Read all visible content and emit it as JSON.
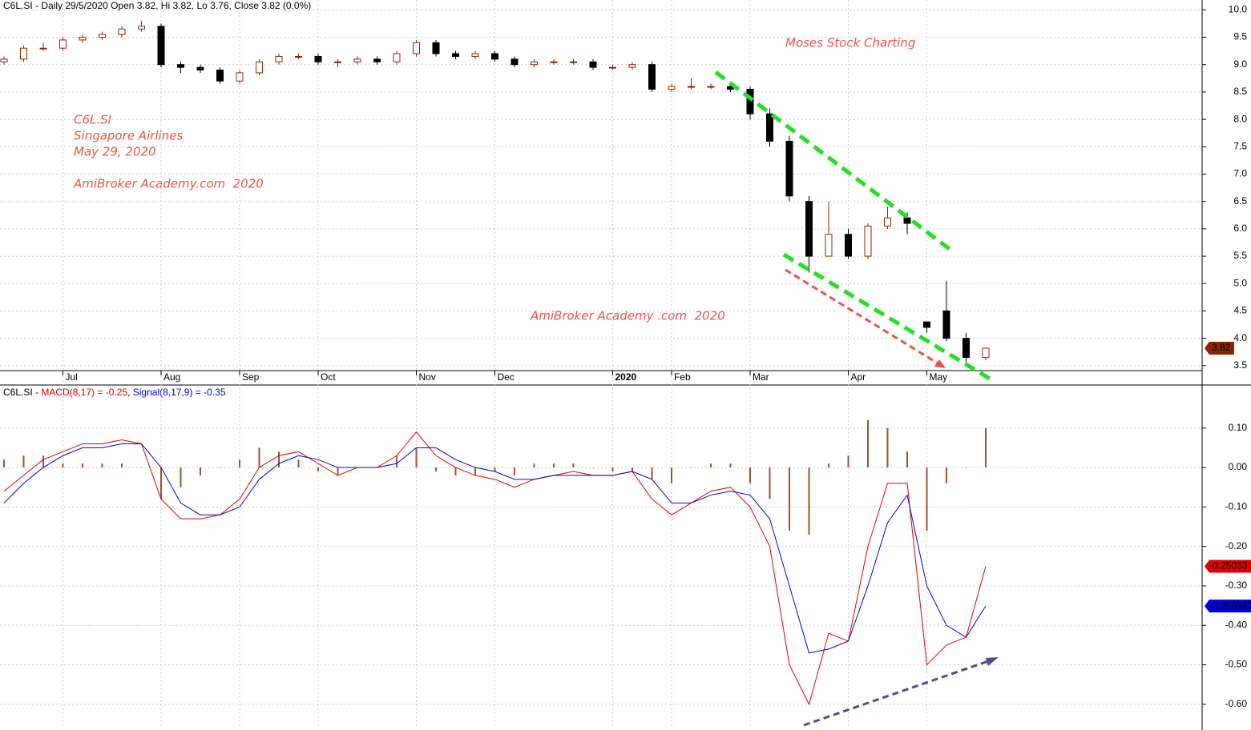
{
  "chart_data": [
    {
      "type": "candlestick",
      "title": "C6L.SI - Daily 29/5/2020 Open 3.82, Hi 3.82, Lo 3.76, Close 3.82 (0.0%)",
      "annotations": [
        "Moses Stock Charting",
        "C6L.SI",
        "Singapore Airlines",
        "May 29, 2020",
        "AmiBroker Academy.com  2020",
        "AmiBroker Academy .com  2020"
      ],
      "categories": [
        null,
        null,
        null,
        "Jul",
        null,
        null,
        null,
        null,
        "Aug",
        null,
        null,
        null,
        "Sep",
        null,
        null,
        null,
        "Oct",
        null,
        null,
        null,
        null,
        "Nov",
        null,
        null,
        null,
        "Dec",
        null,
        null,
        null,
        null,
        null,
        "2020",
        null,
        null,
        "Feb",
        null,
        null,
        null,
        "Mar",
        null,
        null,
        null,
        null,
        "Apr",
        null,
        null,
        null,
        "May",
        null,
        null,
        null
      ],
      "open": [
        9.05,
        9.1,
        9.3,
        9.3,
        9.45,
        9.5,
        9.55,
        9.65,
        9.7,
        9.0,
        8.95,
        8.9,
        8.7,
        8.85,
        9.05,
        9.15,
        9.15,
        9.05,
        9.05,
        9.1,
        9.05,
        9.2,
        9.4,
        9.2,
        9.15,
        9.2,
        9.1,
        9.0,
        9.05,
        9.05,
        9.05,
        8.95,
        8.95,
        9.0,
        8.55,
        8.6,
        8.6,
        8.6,
        8.55,
        8.1,
        7.6,
        6.5,
        5.5,
        5.9,
        5.5,
        6.05,
        6.2,
        4.3,
        4.5,
        4.0,
        3.65
      ],
      "high": [
        9.15,
        9.35,
        9.4,
        9.5,
        9.55,
        9.6,
        9.7,
        9.8,
        9.75,
        9.05,
        9.0,
        8.95,
        8.9,
        9.1,
        9.2,
        9.2,
        9.2,
        9.1,
        9.15,
        9.15,
        9.25,
        9.45,
        9.45,
        9.25,
        9.25,
        9.25,
        9.15,
        9.1,
        9.1,
        9.1,
        9.1,
        9.0,
        9.05,
        9.05,
        8.65,
        8.75,
        8.65,
        8.65,
        8.6,
        8.2,
        7.7,
        6.6,
        6.5,
        6.0,
        6.1,
        6.4,
        6.3,
        4.3,
        5.05,
        4.1,
        3.82
      ],
      "low": [
        9.0,
        9.05,
        9.25,
        9.25,
        9.4,
        9.45,
        9.5,
        9.6,
        8.95,
        8.85,
        8.85,
        8.65,
        8.65,
        8.8,
        9.0,
        9.1,
        9.0,
        8.95,
        9.0,
        9.0,
        9.0,
        9.15,
        9.15,
        9.1,
        9.1,
        9.05,
        8.95,
        8.95,
        9.0,
        9.0,
        8.9,
        8.9,
        8.9,
        8.5,
        8.5,
        8.55,
        8.55,
        8.5,
        8.0,
        7.5,
        6.5,
        5.2,
        5.5,
        5.45,
        5.45,
        6.0,
        5.9,
        4.1,
        3.95,
        3.55,
        3.6
      ],
      "close": [
        9.1,
        9.3,
        9.3,
        9.45,
        9.5,
        9.55,
        9.65,
        9.7,
        9.0,
        8.95,
        8.9,
        8.7,
        8.85,
        9.05,
        9.15,
        9.15,
        9.05,
        9.05,
        9.1,
        9.05,
        9.2,
        9.4,
        9.2,
        9.15,
        9.2,
        9.1,
        9.0,
        9.05,
        9.05,
        9.05,
        8.95,
        8.95,
        9.0,
        8.55,
        8.6,
        8.6,
        8.6,
        8.55,
        8.1,
        7.6,
        6.6,
        5.5,
        5.9,
        5.5,
        6.05,
        6.2,
        6.1,
        4.2,
        4.0,
        3.65,
        3.82
      ],
      "up_color": "#8b2500",
      "down_color": "#000000",
      "ylim": [
        3.41,
        10.18
      ],
      "yticks": [
        {
          "value": 10,
          "label": "10.0"
        },
        9.5,
        {
          "value": 9,
          "label": "9.0"
        },
        8.5,
        {
          "value": 8,
          "label": "8.0"
        },
        7.5,
        {
          "value": 7,
          "label": "7.0"
        },
        6.5,
        {
          "value": 6,
          "label": "6.0"
        },
        5.5,
        {
          "value": 5,
          "label": "5.0"
        },
        4.5,
        {
          "value": 4,
          "label": "4.0"
        },
        3.5
      ],
      "grid": true
    },
    {
      "type": "macd",
      "title_prefix": "C6L.SI - ",
      "title_macd": "MACD(8,17) = -0.25",
      "title_signal": "Signal(8,17,9) = -0.35",
      "series": [
        {
          "name": "MACD",
          "color": "#e00000",
          "values": [
            -0.06,
            -0.02,
            0.02,
            0.04,
            0.06,
            0.06,
            0.07,
            0.06,
            -0.08,
            -0.13,
            -0.13,
            -0.12,
            -0.08,
            0.0,
            0.03,
            0.04,
            0.01,
            -0.02,
            0.0,
            0.0,
            0.03,
            0.09,
            0.03,
            0.0,
            -0.02,
            -0.03,
            -0.05,
            -0.03,
            -0.02,
            -0.01,
            -0.02,
            -0.02,
            -0.01,
            -0.08,
            -0.12,
            -0.09,
            -0.06,
            -0.05,
            -0.1,
            -0.2,
            -0.5,
            -0.6,
            -0.42,
            -0.44,
            -0.2,
            -0.04,
            -0.04,
            -0.5,
            -0.45,
            -0.43,
            -0.25033
          ]
        },
        {
          "name": "Signal",
          "color": "#0000e0",
          "values": [
            -0.09,
            -0.04,
            0.0,
            0.03,
            0.05,
            0.05,
            0.06,
            0.06,
            0.0,
            -0.09,
            -0.12,
            -0.12,
            -0.1,
            -0.03,
            0.01,
            0.03,
            0.02,
            0.0,
            0.0,
            0.0,
            0.01,
            0.05,
            0.05,
            0.02,
            0.0,
            -0.01,
            -0.03,
            -0.03,
            -0.02,
            -0.02,
            -0.02,
            -0.02,
            -0.01,
            -0.03,
            -0.09,
            -0.09,
            -0.07,
            -0.06,
            -0.07,
            -0.13,
            -0.3,
            -0.47,
            -0.46,
            -0.44,
            -0.3,
            -0.14,
            -0.07,
            -0.3,
            -0.4,
            -0.43,
            -0.350962
          ]
        },
        {
          "name": "Histogram",
          "color": "#a0522d",
          "values": [
            0.02,
            0.03,
            0.03,
            0.01,
            0.01,
            0.01,
            0.01,
            0.0,
            -0.08,
            -0.05,
            -0.02,
            0.0,
            0.02,
            0.05,
            0.04,
            0.02,
            -0.01,
            -0.02,
            0.0,
            0.0,
            0.03,
            0.05,
            -0.01,
            -0.02,
            -0.02,
            -0.01,
            -0.02,
            0.01,
            0.01,
            0.01,
            0.0,
            -0.01,
            -0.01,
            -0.03,
            -0.04,
            0.0,
            0.01,
            0.01,
            -0.04,
            -0.08,
            -0.16,
            -0.17,
            0.01,
            0.03,
            0.12,
            0.1,
            0.04,
            -0.16,
            -0.04,
            0.0,
            0.1
          ]
        }
      ],
      "ylim": [
        -0.655,
        0.209
      ],
      "yticks": [
        {
          "value": 0.1,
          "label": "0.10"
        },
        {
          "value": 0,
          "label": "0.00"
        },
        {
          "value": -0.1,
          "label": "-0.10"
        },
        {
          "value": -0.2,
          "label": "-0.20"
        },
        {
          "value": -0.3,
          "label": "-0.30"
        },
        {
          "value": -0.4,
          "label": "-0.40"
        },
        {
          "value": -0.5,
          "label": "-0.50"
        },
        {
          "value": -0.6,
          "label": "-0.60"
        }
      ],
      "grid": true
    }
  ]
}
